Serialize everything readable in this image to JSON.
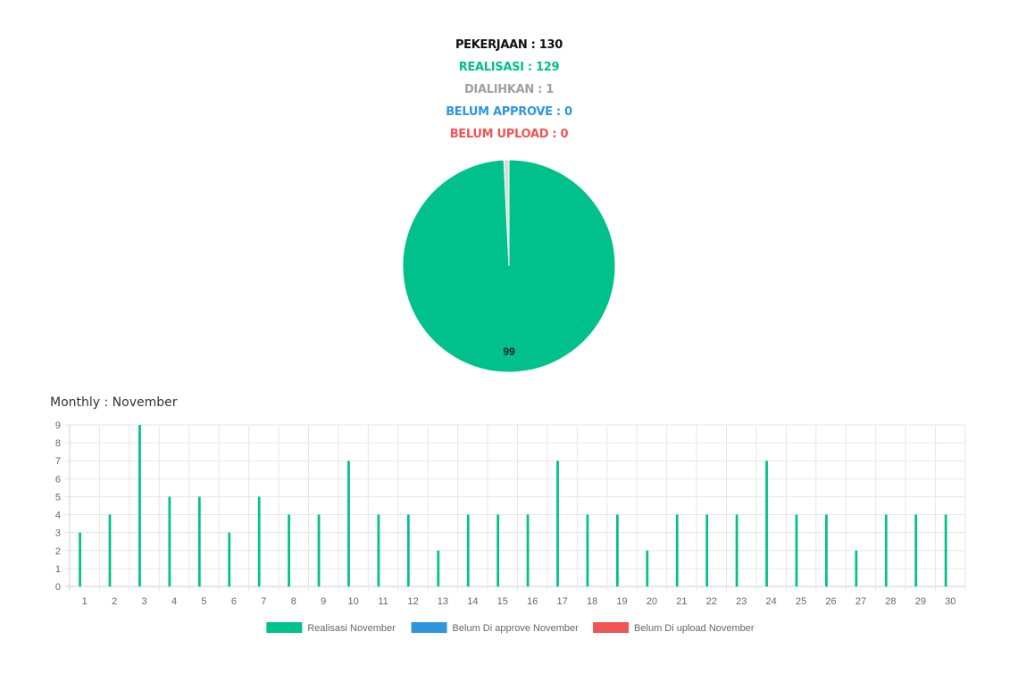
{
  "summary": {
    "pekerjaan": "PEKERJAAN : 130",
    "realisasi": "REALISASI : 129",
    "dialihkan": "DIALIHKAN : 1",
    "belum_approve": "BELUM APPROVE : 0",
    "belum_upload": "BELUM UPLOAD : 0"
  },
  "colors": {
    "pekerjaan": "#111111",
    "realisasi": "#00c08b",
    "dialihkan": "#a0a0a0",
    "belum_approve": "#2f96dd",
    "belum_upload": "#f05454",
    "grid": "#e6e6e6",
    "tick": "#666666"
  },
  "monthly_title": "Monthly : November",
  "chart_data": [
    {
      "type": "pie",
      "slices": [
        {
          "label": "Realisasi",
          "value": 129,
          "color": "#00c08b"
        },
        {
          "label": "Dialihkan",
          "value": 1,
          "color": "#d9d9d9"
        }
      ],
      "data_label": "99"
    },
    {
      "type": "bar",
      "categories": [
        "1",
        "2",
        "3",
        "4",
        "5",
        "6",
        "7",
        "8",
        "9",
        "10",
        "11",
        "12",
        "13",
        "14",
        "15",
        "16",
        "17",
        "18",
        "19",
        "20",
        "21",
        "22",
        "23",
        "24",
        "25",
        "26",
        "27",
        "28",
        "29",
        "30"
      ],
      "series": [
        {
          "name": "Realisasi November",
          "color": "#00c08b",
          "values": [
            3,
            4,
            9,
            5,
            5,
            3,
            5,
            4,
            4,
            7,
            4,
            4,
            2,
            4,
            4,
            4,
            7,
            4,
            4,
            2,
            4,
            4,
            4,
            7,
            4,
            4,
            2,
            4,
            4,
            4
          ]
        },
        {
          "name": "Belum Di approve November",
          "color": "#2f96dd",
          "values": [
            0,
            0,
            0,
            0,
            0,
            0,
            0,
            0,
            0,
            0,
            0,
            0,
            0,
            0,
            0,
            0,
            0,
            0,
            0,
            0,
            0,
            0,
            0,
            0,
            0,
            0,
            0,
            0,
            0,
            0
          ]
        },
        {
          "name": "Belum Di upload November",
          "color": "#f05454",
          "values": [
            0,
            0,
            0,
            0,
            0,
            0,
            0,
            0,
            0,
            0,
            0,
            0,
            0,
            0,
            0,
            0,
            0,
            0,
            0,
            0,
            0,
            0,
            0,
            0,
            0,
            0,
            0,
            0,
            0,
            0
          ]
        }
      ],
      "ylim": [
        0,
        9
      ],
      "yticks": [
        0,
        1,
        2,
        3,
        4,
        5,
        6,
        7,
        8,
        9
      ],
      "grid": true,
      "legend_position": "bottom"
    }
  ]
}
